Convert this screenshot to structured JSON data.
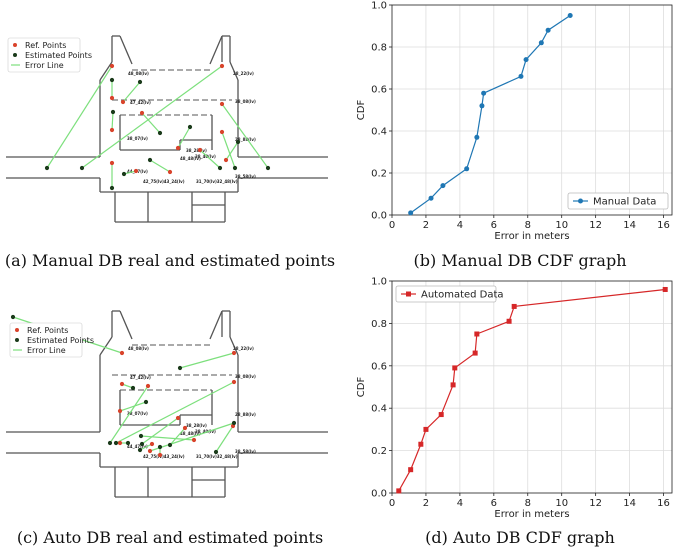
{
  "captions": {
    "a": "(a) Manual DB real and estimated points",
    "b": "(b) Manual DB CDF graph",
    "c": "(c) Auto DB real and estimated points",
    "d": "(d) Auto DB CDF graph"
  },
  "map_legend": {
    "ref": "Ref. Points",
    "est": "Estimated Points",
    "err": "Error Line"
  },
  "colors": {
    "manual_series": "#1f77b4",
    "auto_series": "#d62728",
    "ref_point": "#d9432b",
    "est_point": "#1a3a1a",
    "error_line": "#7de07d",
    "wall": "#555555"
  },
  "map_labels": {
    "manual": [
      "48_08(lv)",
      "28_22(lv)",
      "47_42(lv)",
      "38_08(lv)",
      "38_07(lv)",
      "28_88(lv)",
      "38_28(lv)",
      "38_40(lv)",
      "44_47(lv)",
      "42_75(lv)43_24(lv)",
      "31_70(lv)32_48(lv)",
      "38_58(lv)",
      "48_48(lv)"
    ],
    "auto": [
      "48_08(lv)",
      "28_22(lv)",
      "47_42(lv)",
      "38_08(lv)",
      "38_07(lv)",
      "28_88(lv)",
      "38_28(lv)",
      "38_40(lv)",
      "44_47(lv)",
      "42_75(lv)43_24(lv)",
      "31_70(lv)32_48(lv)",
      "38_58(lv)",
      "48_48(lv)"
    ]
  },
  "chart_data": [
    {
      "type": "line",
      "title": "",
      "xlabel": "Error in meters",
      "ylabel": "CDF",
      "xlim": [
        0,
        16.5
      ],
      "ylim": [
        0,
        1.0
      ],
      "xticks": [
        0,
        2,
        4,
        6,
        8,
        10,
        12,
        14,
        16
      ],
      "yticks": [
        0.0,
        0.2,
        0.4,
        0.6,
        0.8,
        1.0
      ],
      "grid": true,
      "legend_position": "bottom-right",
      "series": [
        {
          "name": "Manual Data",
          "marker": "circle",
          "x": [
            1.1,
            2.3,
            3.0,
            4.4,
            5.0,
            5.3,
            5.4,
            7.6,
            7.9,
            8.8,
            9.2,
            10.5
          ],
          "y": [
            0.01,
            0.08,
            0.14,
            0.22,
            0.37,
            0.52,
            0.58,
            0.66,
            0.74,
            0.82,
            0.88,
            0.95
          ]
        }
      ]
    },
    {
      "type": "line",
      "title": "",
      "xlabel": "Error in meters",
      "ylabel": "CDF",
      "xlim": [
        0,
        16.5
      ],
      "ylim": [
        0,
        1.0
      ],
      "xticks": [
        0,
        2,
        4,
        6,
        8,
        10,
        12,
        14,
        16
      ],
      "yticks": [
        0.0,
        0.2,
        0.4,
        0.6,
        0.8,
        1.0
      ],
      "grid": true,
      "legend_position": "top-left",
      "series": [
        {
          "name": "Automated Data",
          "marker": "square",
          "x": [
            0.4,
            1.1,
            1.7,
            2.0,
            2.9,
            3.6,
            3.7,
            4.9,
            5.0,
            6.9,
            7.2,
            16.1
          ],
          "y": [
            0.01,
            0.11,
            0.23,
            0.3,
            0.37,
            0.51,
            0.59,
            0.66,
            0.75,
            0.81,
            0.88,
            0.96
          ]
        }
      ]
    }
  ]
}
